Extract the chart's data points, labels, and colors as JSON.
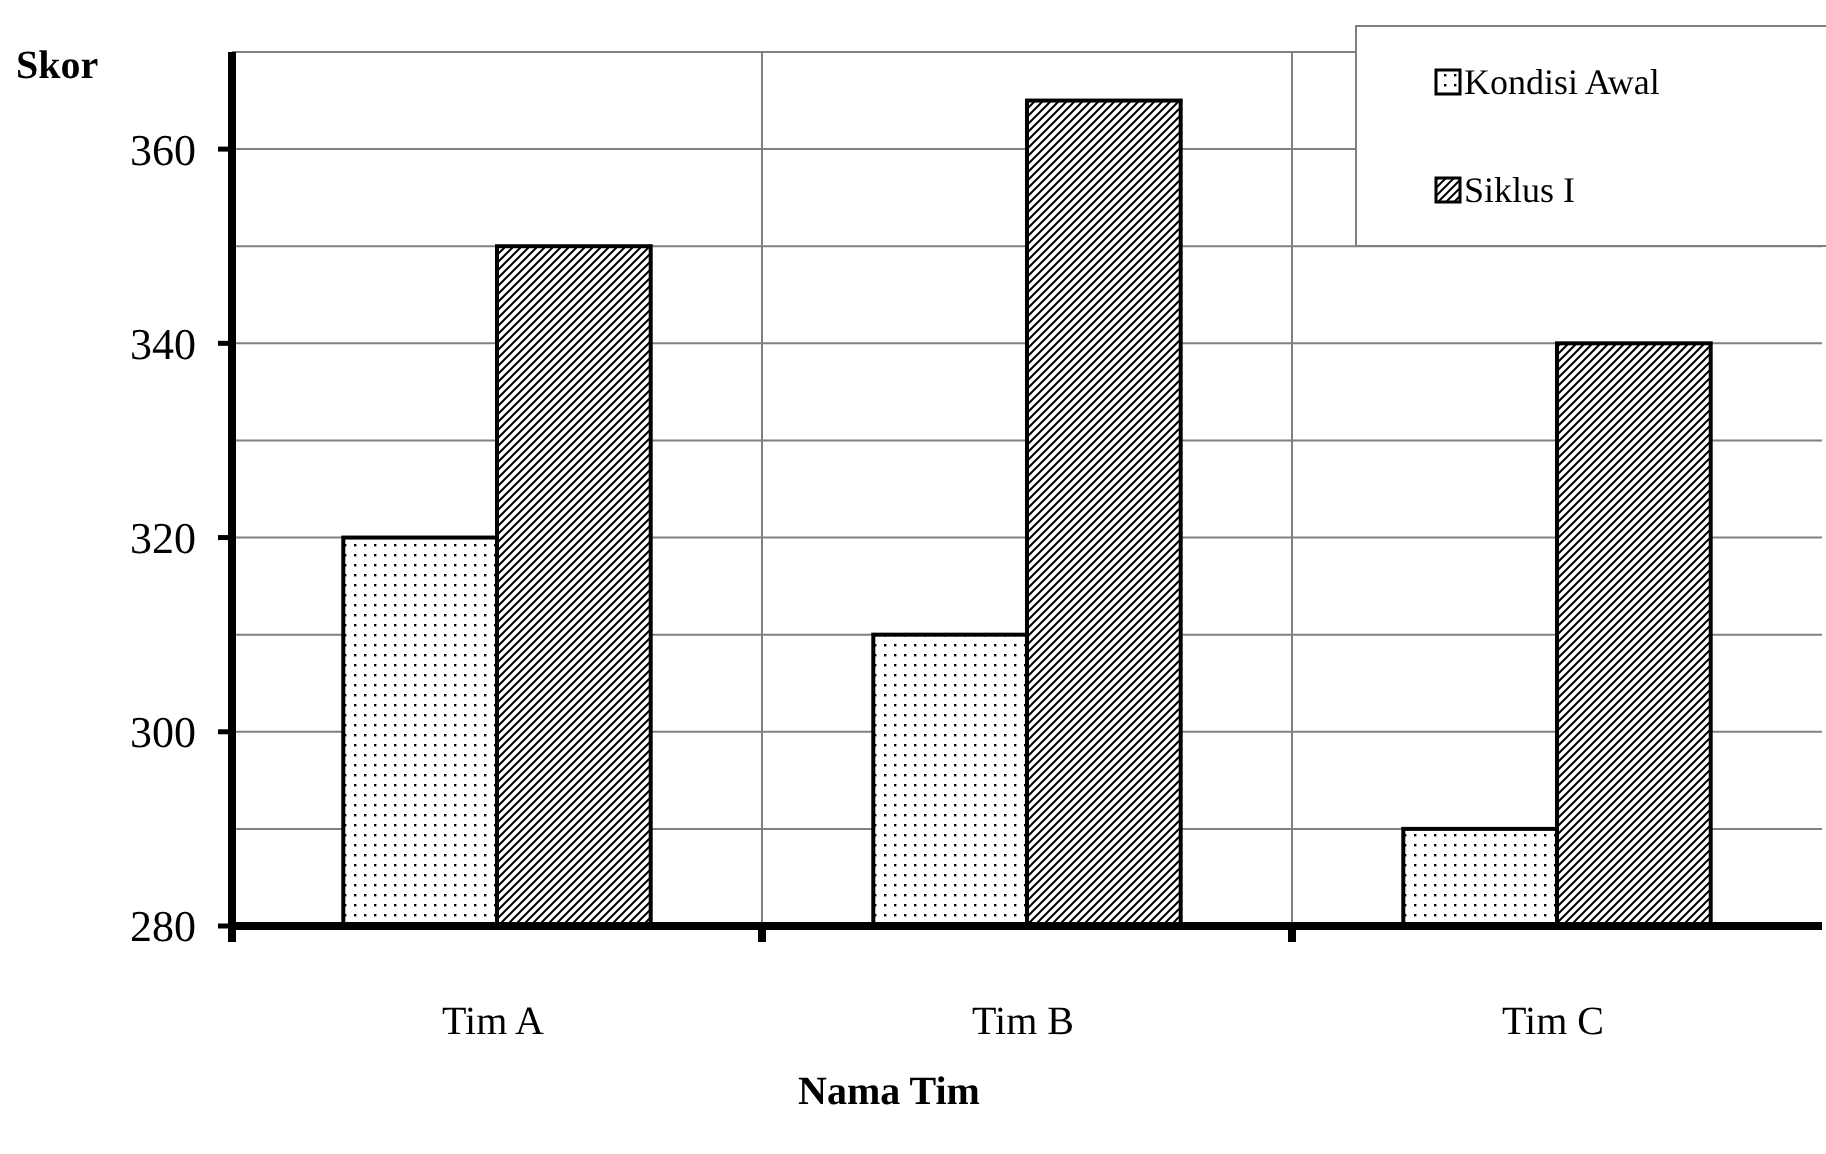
{
  "chart_data": {
    "type": "bar",
    "xlabel": "Nama Tim",
    "ylabel": "Skor",
    "categories": [
      "Tim A",
      "Tim B",
      "Tim C"
    ],
    "series": [
      {
        "name": "Kondisi Awal",
        "color": "#000000",
        "values": [
          320,
          310,
          290
        ]
      },
      {
        "name": "Siklus I",
        "color": "#000000",
        "values": [
          350,
          365,
          340
        ]
      }
    ],
    "ylim": [
      280,
      370
    ],
    "yticks": [
      280,
      {
        "value": 290,
        "label": null
      },
      300,
      {
        "value": 310,
        "label": null
      },
      320,
      {
        "value": 330,
        "label": null
      },
      340,
      {
        "value": 350,
        "label": null
      },
      360,
      {
        "value": 370,
        "label": null
      }
    ],
    "grid": true,
    "legend": "top right"
  }
}
